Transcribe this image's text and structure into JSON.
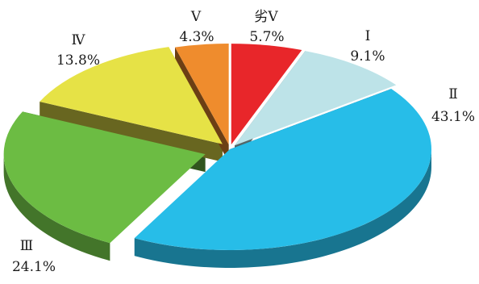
{
  "chart_data": {
    "type": "pie",
    "style": "3d-exploded",
    "slices": [
      {
        "label": "劣Ⅴ",
        "value": 5.7,
        "value_text": "5.7%",
        "color": "#e8262a"
      },
      {
        "label": "Ⅰ",
        "value": 9.1,
        "value_text": "9.1%",
        "color": "#bde3e8"
      },
      {
        "label": "Ⅱ",
        "value": 43.1,
        "value_text": "43.1%",
        "color": "#27bde8"
      },
      {
        "label": "Ⅲ",
        "value": 24.1,
        "value_text": "24.1%",
        "color": "#6cbc43"
      },
      {
        "label": "Ⅳ",
        "value": 13.8,
        "value_text": "13.8%",
        "color": "#e6e246"
      },
      {
        "label": "Ⅴ",
        "value": 4.3,
        "value_text": "4.3%",
        "color": "#ef8c2d"
      }
    ]
  }
}
